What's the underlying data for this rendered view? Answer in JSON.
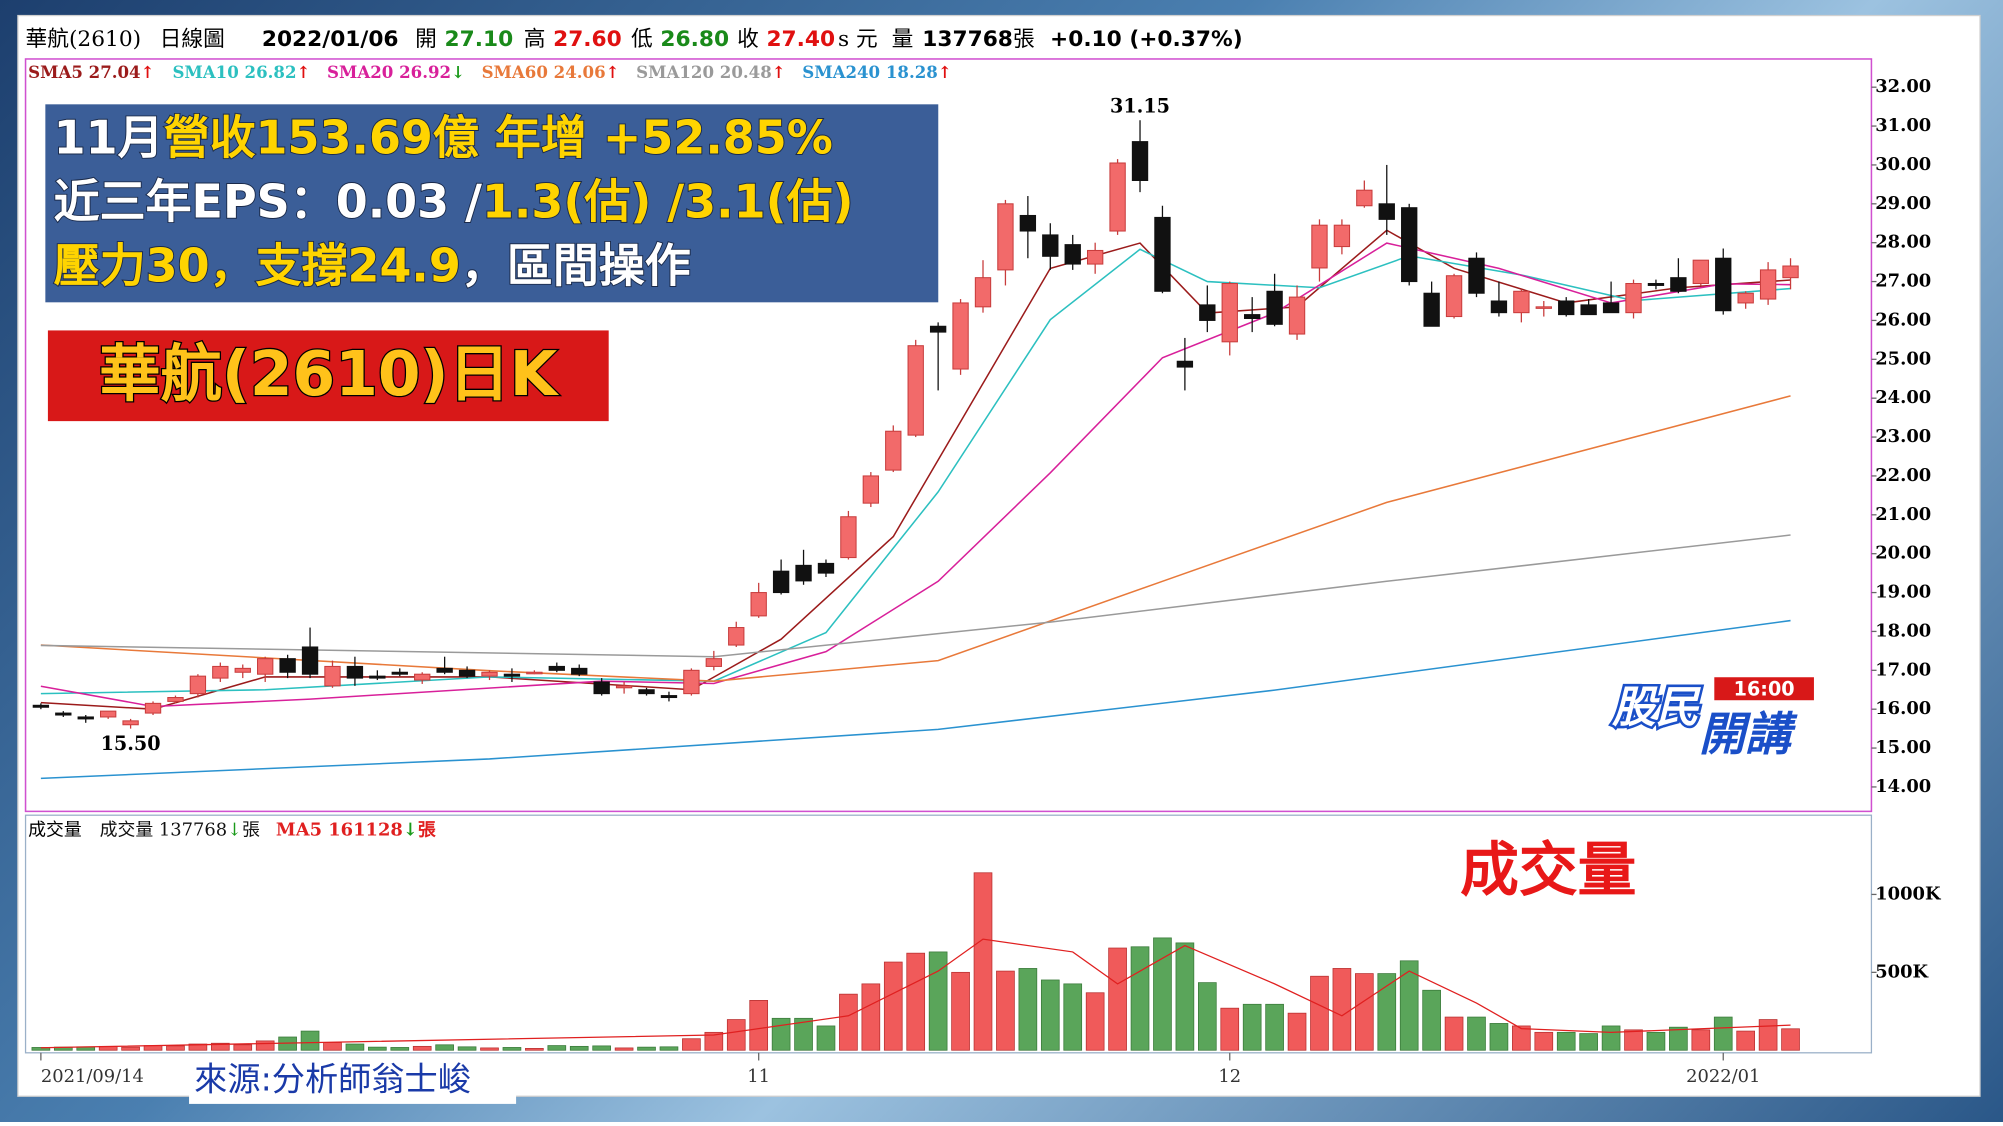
{
  "header": {
    "name": "華航(2610)",
    "period": "日線圖",
    "date": "2022/01/06",
    "open_label": "開",
    "open": "27.10",
    "high_label": "高",
    "high": "27.60",
    "low_label": "低",
    "low": "26.80",
    "close_label": "收",
    "close": "27.40",
    "unit": "s 元",
    "volume_label": "量",
    "volume": "137768",
    "volume_unit": "張",
    "change": "+0.10 (+0.37%)"
  },
  "overlay": {
    "info_lines": [
      [
        {
          "text": "11月",
          "color": "#ffffff"
        },
        {
          "text": "營收153.69億 年增 +52.85%",
          "color": "#ffd400"
        }
      ],
      [
        {
          "text": "近三年EPS：0.03 /",
          "color": "#ffffff"
        },
        {
          "text": "1.3(估) /3.1(估)",
          "color": "#ffd400"
        }
      ],
      [
        {
          "text": "壓力30，支撐24.9",
          "color": "#ffd400"
        },
        {
          "text": "，區間操作",
          "color": "#ffffff"
        }
      ]
    ],
    "badge": "華航(2610)日K",
    "volume_caption": "成交量",
    "source": "來源:分析師翁士峻",
    "logo": {
      "top": "股民",
      "time": "16:00",
      "bottom": "開講"
    }
  },
  "chart_data": {
    "type": "candlestick",
    "categories": [
      "2021/09/14",
      null,
      null,
      null,
      null,
      null,
      null,
      null,
      null,
      null,
      null,
      null,
      null,
      null,
      null,
      null,
      null,
      null,
      null,
      null,
      null,
      null,
      null,
      null,
      null,
      null,
      null,
      null,
      null,
      null,
      null,
      null,
      "11",
      null,
      null,
      null,
      null,
      null,
      null,
      null,
      null,
      null,
      null,
      null,
      null,
      null,
      null,
      null,
      null,
      null,
      null,
      null,
      null,
      "12",
      null,
      null,
      null,
      null,
      null,
      null,
      null,
      null,
      null,
      null,
      null,
      null,
      null,
      null,
      null,
      null,
      null,
      null,
      null,
      null,
      null,
      "2022/01",
      null,
      null,
      null
    ],
    "open": [
      16.1,
      15.9,
      15.8,
      15.8,
      15.6,
      15.9,
      16.2,
      16.4,
      16.8,
      16.95,
      16.9,
      17.3,
      17.6,
      16.6,
      17.1,
      16.85,
      16.95,
      16.75,
      17.05,
      17.0,
      16.85,
      16.9,
      16.95,
      17.1,
      17.05,
      16.7,
      16.55,
      16.5,
      16.35,
      16.4,
      17.1,
      17.65,
      18.4,
      19.55,
      19.7,
      19.75,
      19.9,
      21.3,
      22.15,
      23.05,
      25.85,
      24.75,
      26.35,
      27.3,
      28.7,
      28.2,
      27.95,
      27.45,
      28.3,
      30.6,
      28.65,
      24.95,
      26.4,
      25.45,
      26.15,
      26.75,
      25.65,
      27.35,
      27.9,
      28.95,
      29.0,
      28.9,
      26.7,
      26.1,
      27.6,
      26.5,
      26.2,
      26.35,
      26.5,
      26.4,
      26.45,
      26.2,
      26.95,
      27.1,
      26.95,
      27.6,
      26.45,
      26.55,
      27.1
    ],
    "high": [
      16.15,
      15.95,
      15.85,
      15.95,
      15.75,
      16.2,
      16.35,
      16.9,
      17.2,
      17.15,
      17.35,
      17.4,
      18.1,
      17.25,
      17.35,
      17.0,
      17.05,
      16.95,
      17.35,
      17.1,
      17.0,
      17.05,
      17.0,
      17.2,
      17.15,
      16.8,
      16.7,
      16.55,
      16.45,
      17.05,
      17.5,
      18.25,
      19.25,
      19.85,
      20.1,
      19.85,
      21.1,
      22.1,
      23.3,
      25.5,
      25.95,
      26.55,
      27.55,
      29.1,
      29.2,
      28.5,
      28.2,
      28.0,
      30.15,
      31.15,
      28.95,
      25.55,
      26.9,
      27.0,
      26.6,
      27.2,
      26.9,
      28.6,
      28.6,
      29.6,
      30.0,
      29.0,
      27.0,
      27.2,
      27.75,
      27.0,
      26.8,
      26.5,
      26.6,
      26.55,
      27.0,
      27.05,
      27.05,
      27.6,
      27.55,
      27.85,
      26.75,
      27.5,
      27.6
    ],
    "low": [
      16.0,
      15.8,
      15.65,
      15.75,
      15.5,
      15.85,
      16.15,
      16.3,
      16.7,
      16.8,
      16.7,
      16.8,
      16.8,
      16.55,
      16.6,
      16.75,
      16.85,
      16.65,
      16.9,
      16.8,
      16.75,
      16.7,
      16.9,
      16.95,
      16.85,
      16.35,
      16.4,
      16.35,
      16.2,
      16.35,
      17.0,
      17.6,
      18.35,
      18.95,
      19.2,
      19.4,
      19.85,
      21.2,
      22.1,
      23.0,
      24.2,
      24.6,
      26.2,
      26.9,
      27.6,
      27.3,
      27.3,
      27.2,
      28.2,
      29.3,
      26.7,
      24.2,
      25.7,
      25.1,
      25.7,
      25.85,
      25.5,
      27.0,
      27.7,
      28.9,
      28.2,
      26.9,
      25.85,
      26.05,
      26.6,
      26.1,
      25.95,
      26.1,
      26.1,
      26.15,
      26.2,
      26.05,
      26.8,
      26.7,
      26.9,
      26.15,
      26.3,
      26.4,
      26.8
    ],
    "close": [
      16.05,
      15.85,
      15.75,
      15.95,
      15.7,
      16.15,
      16.3,
      16.85,
      17.1,
      17.05,
      17.3,
      16.95,
      16.9,
      17.1,
      16.8,
      16.8,
      16.9,
      16.9,
      16.95,
      16.85,
      16.95,
      16.85,
      16.95,
      17.0,
      16.9,
      16.4,
      16.6,
      16.4,
      16.3,
      17.0,
      17.3,
      18.1,
      19.0,
      19.0,
      19.3,
      19.5,
      20.95,
      22.0,
      23.15,
      25.35,
      25.7,
      26.45,
      27.1,
      29.0,
      28.3,
      27.65,
      27.45,
      27.8,
      30.05,
      29.6,
      26.75,
      24.8,
      26.0,
      26.95,
      26.05,
      25.9,
      26.6,
      28.45,
      28.45,
      29.35,
      28.6,
      27.0,
      25.85,
      27.15,
      26.7,
      26.2,
      26.75,
      26.35,
      26.15,
      26.15,
      26.2,
      26.95,
      26.9,
      26.75,
      27.55,
      26.25,
      26.7,
      27.3,
      27.4
    ],
    "volume": [
      18000,
      20000,
      22000,
      25000,
      20000,
      30000,
      28000,
      40000,
      45000,
      35000,
      60000,
      85000,
      123000,
      50000,
      40000,
      20000,
      18000,
      25000,
      35000,
      22000,
      15000,
      18000,
      12000,
      30000,
      25000,
      28000,
      15000,
      20000,
      22000,
      74000,
      115000,
      197000,
      320000,
      205000,
      205000,
      156000,
      360000,
      426000,
      566000,
      623000,
      631000,
      500000,
      1139000,
      508000,
      525000,
      451000,
      426000,
      369000,
      656000,
      664000,
      721000,
      689000,
      434000,
      270000,
      295000,
      295000,
      238000,
      475000,
      525000,
      492000,
      492000,
      574000,
      385000,
      213000,
      213000,
      172000,
      156000,
      115000,
      115000,
      107000,
      156000,
      131000,
      115000,
      148000,
      131000,
      213000,
      123000,
      197000,
      137768
    ],
    "up_color": "#f26a6a",
    "down_color": "#111111",
    "volume_up_color": "#f05a5a",
    "volume_down_color": "#5aa55a",
    "ylim": [
      13.47,
      32.66
    ],
    "yticks": [
      {
        "value": 14,
        "label": "14.00"
      },
      {
        "value": 15,
        "label": "15.00"
      },
      {
        "value": 16,
        "label": "16.00"
      },
      {
        "value": 17,
        "label": "17.00"
      },
      {
        "value": 18,
        "label": "18.00"
      },
      {
        "value": 19,
        "label": "19.00"
      },
      {
        "value": 20,
        "label": "20.00"
      },
      {
        "value": 21,
        "label": "21.00"
      },
      {
        "value": 22,
        "label": "22.00"
      },
      {
        "value": 23,
        "label": "23.00"
      },
      {
        "value": 24,
        "label": "24.00"
      },
      {
        "value": 25,
        "label": "25.00"
      },
      {
        "value": 26,
        "label": "26.00"
      },
      {
        "value": 27,
        "label": "27.00"
      },
      {
        "value": 28,
        "label": "28.00"
      },
      {
        "value": 29,
        "label": "29.00"
      },
      {
        "value": 30,
        "label": "30.00"
      },
      {
        "value": 31,
        "label": "31.00"
      },
      {
        "value": 32,
        "label": "32.00"
      }
    ],
    "high_label": 31.15,
    "low_label": {
      "value": 15.5,
      "label": "15.50"
    },
    "moving_averages": [
      {
        "name": "SMA5 27.04",
        "arrow": "↑",
        "color": "#9b1b1b",
        "x": [
          0,
          5,
          10,
          20,
          29,
          33,
          38,
          42,
          45,
          49,
          52,
          56,
          60,
          63,
          68,
          73,
          78
        ],
        "values": [
          16.17,
          16.0,
          16.83,
          16.83,
          16.5,
          17.8,
          20.44,
          24.38,
          27.34,
          27.99,
          26.19,
          26.35,
          28.32,
          27.34,
          26.45,
          26.84,
          27.04
        ]
      },
      {
        "name": "SMA10 26.82",
        "arrow": "↑",
        "color": "#2cc0c0",
        "x": [
          0,
          10,
          20,
          30,
          35,
          40,
          45,
          49,
          52,
          57,
          61,
          66,
          71,
          78
        ],
        "values": [
          16.4,
          16.5,
          16.83,
          16.72,
          17.97,
          21.59,
          26.02,
          27.83,
          27.0,
          26.84,
          27.66,
          27.17,
          26.51,
          26.82
        ]
      },
      {
        "name": "SMA20 26.92",
        "arrow": "↓",
        "color": "#d8209a",
        "x": [
          0,
          5,
          12,
          25,
          30,
          35,
          40,
          45,
          50,
          55,
          60,
          65,
          70,
          75,
          78
        ],
        "values": [
          16.59,
          16.07,
          16.26,
          16.72,
          16.66,
          17.48,
          19.29,
          22.08,
          25.04,
          26.19,
          27.99,
          27.34,
          26.45,
          26.94,
          26.92
        ]
      },
      {
        "name": "SMA60 24.06",
        "arrow": "↑",
        "color": "#e8793a",
        "x": [
          0,
          20,
          30,
          40,
          50,
          60,
          78
        ],
        "values": [
          17.65,
          16.99,
          16.72,
          17.25,
          19.29,
          21.32,
          24.06
        ]
      },
      {
        "name": "SMA120 20.48",
        "arrow": "↑",
        "color": "#9a9a9a",
        "x": [
          0,
          30,
          45,
          60,
          78
        ],
        "values": [
          17.64,
          17.35,
          18.24,
          19.29,
          20.48
        ]
      },
      {
        "name": "SMA240 18.28",
        "arrow": "↑",
        "color": "#2a92d0",
        "x": [
          0,
          20,
          40,
          55,
          78
        ],
        "values": [
          14.22,
          14.72,
          15.48,
          16.49,
          18.28
        ]
      }
    ],
    "volume_panel": {
      "title": "成交量",
      "legend": [
        {
          "text": "成交量 137768",
          "arrow": "↓",
          "unit": "張",
          "color": "#111111"
        },
        {
          "text": "MA5 161128",
          "arrow": "↓",
          "unit": "張",
          "color": "#e02020"
        }
      ],
      "ylim": [
        0,
        1492000
      ],
      "yticks": [
        {
          "value": 500000,
          "label": "500K"
        },
        {
          "value": 1000000,
          "label": "1000K"
        }
      ],
      "ma": {
        "color": "#e02020",
        "x": [
          0,
          30,
          36,
          40,
          42,
          46,
          48,
          51,
          55,
          58,
          61,
          64,
          66,
          70,
          78
        ],
        "values": [
          16000,
          98000,
          221000,
          508000,
          713000,
          631000,
          426000,
          672000,
          426000,
          221000,
          508000,
          303000,
          139000,
          115000,
          161128
        ]
      }
    }
  }
}
